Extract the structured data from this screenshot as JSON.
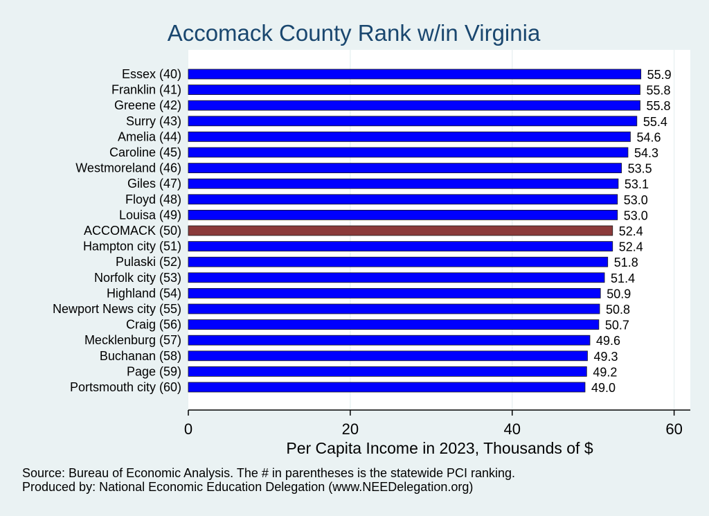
{
  "chart_data": {
    "type": "bar",
    "orientation": "horizontal",
    "title": "Accomack County Rank w/in Virginia",
    "xlabel": "Per Capita Income in 2023, Thousands of $",
    "ylabel": "",
    "xlim": [
      0,
      62
    ],
    "xticks": [
      0,
      20,
      40,
      60
    ],
    "grid": true,
    "categories": [
      "Essex (40)",
      "Franklin (41)",
      "Greene (42)",
      "Surry (43)",
      "Amelia (44)",
      "Caroline (45)",
      "Westmoreland (46)",
      "Giles (47)",
      "Floyd (48)",
      "Louisa (49)",
      "ACCOMACK (50)",
      "Hampton city (51)",
      "Pulaski (52)",
      "Norfolk city (53)",
      "Highland (54)",
      "Newport News city (55)",
      "Craig (56)",
      "Mecklenburg (57)",
      "Buchanan (58)",
      "Page (59)",
      "Portsmouth city (60)"
    ],
    "values": [
      55.9,
      55.8,
      55.8,
      55.4,
      54.6,
      54.3,
      53.5,
      53.1,
      53.0,
      53.0,
      52.4,
      52.4,
      51.8,
      51.4,
      50.9,
      50.8,
      50.7,
      49.6,
      49.3,
      49.2,
      49.0
    ],
    "value_labels": [
      "55.9",
      "55.8",
      "55.8",
      "55.4",
      "54.6",
      "54.3",
      "53.5",
      "53.1",
      "53.0",
      "53.0",
      "52.4",
      "52.4",
      "51.8",
      "51.4",
      "50.9",
      "50.8",
      "50.7",
      "49.6",
      "49.3",
      "49.2",
      "49.0"
    ],
    "highlight_index": 10,
    "colors": {
      "bar": "#0000ff",
      "highlight": "#8b3a3a",
      "title": "#1a476f",
      "plot_bg": "#ffffff",
      "page_bg": "#eaf2f3",
      "grid": "#eaf2f3"
    }
  },
  "notes": {
    "source": "Source: Bureau of Economic Analysis. The # in parentheses is the statewide PCI ranking.",
    "produced_by": "Produced by: National Economic Education Delegation (www.NEEDelegation.org)"
  }
}
